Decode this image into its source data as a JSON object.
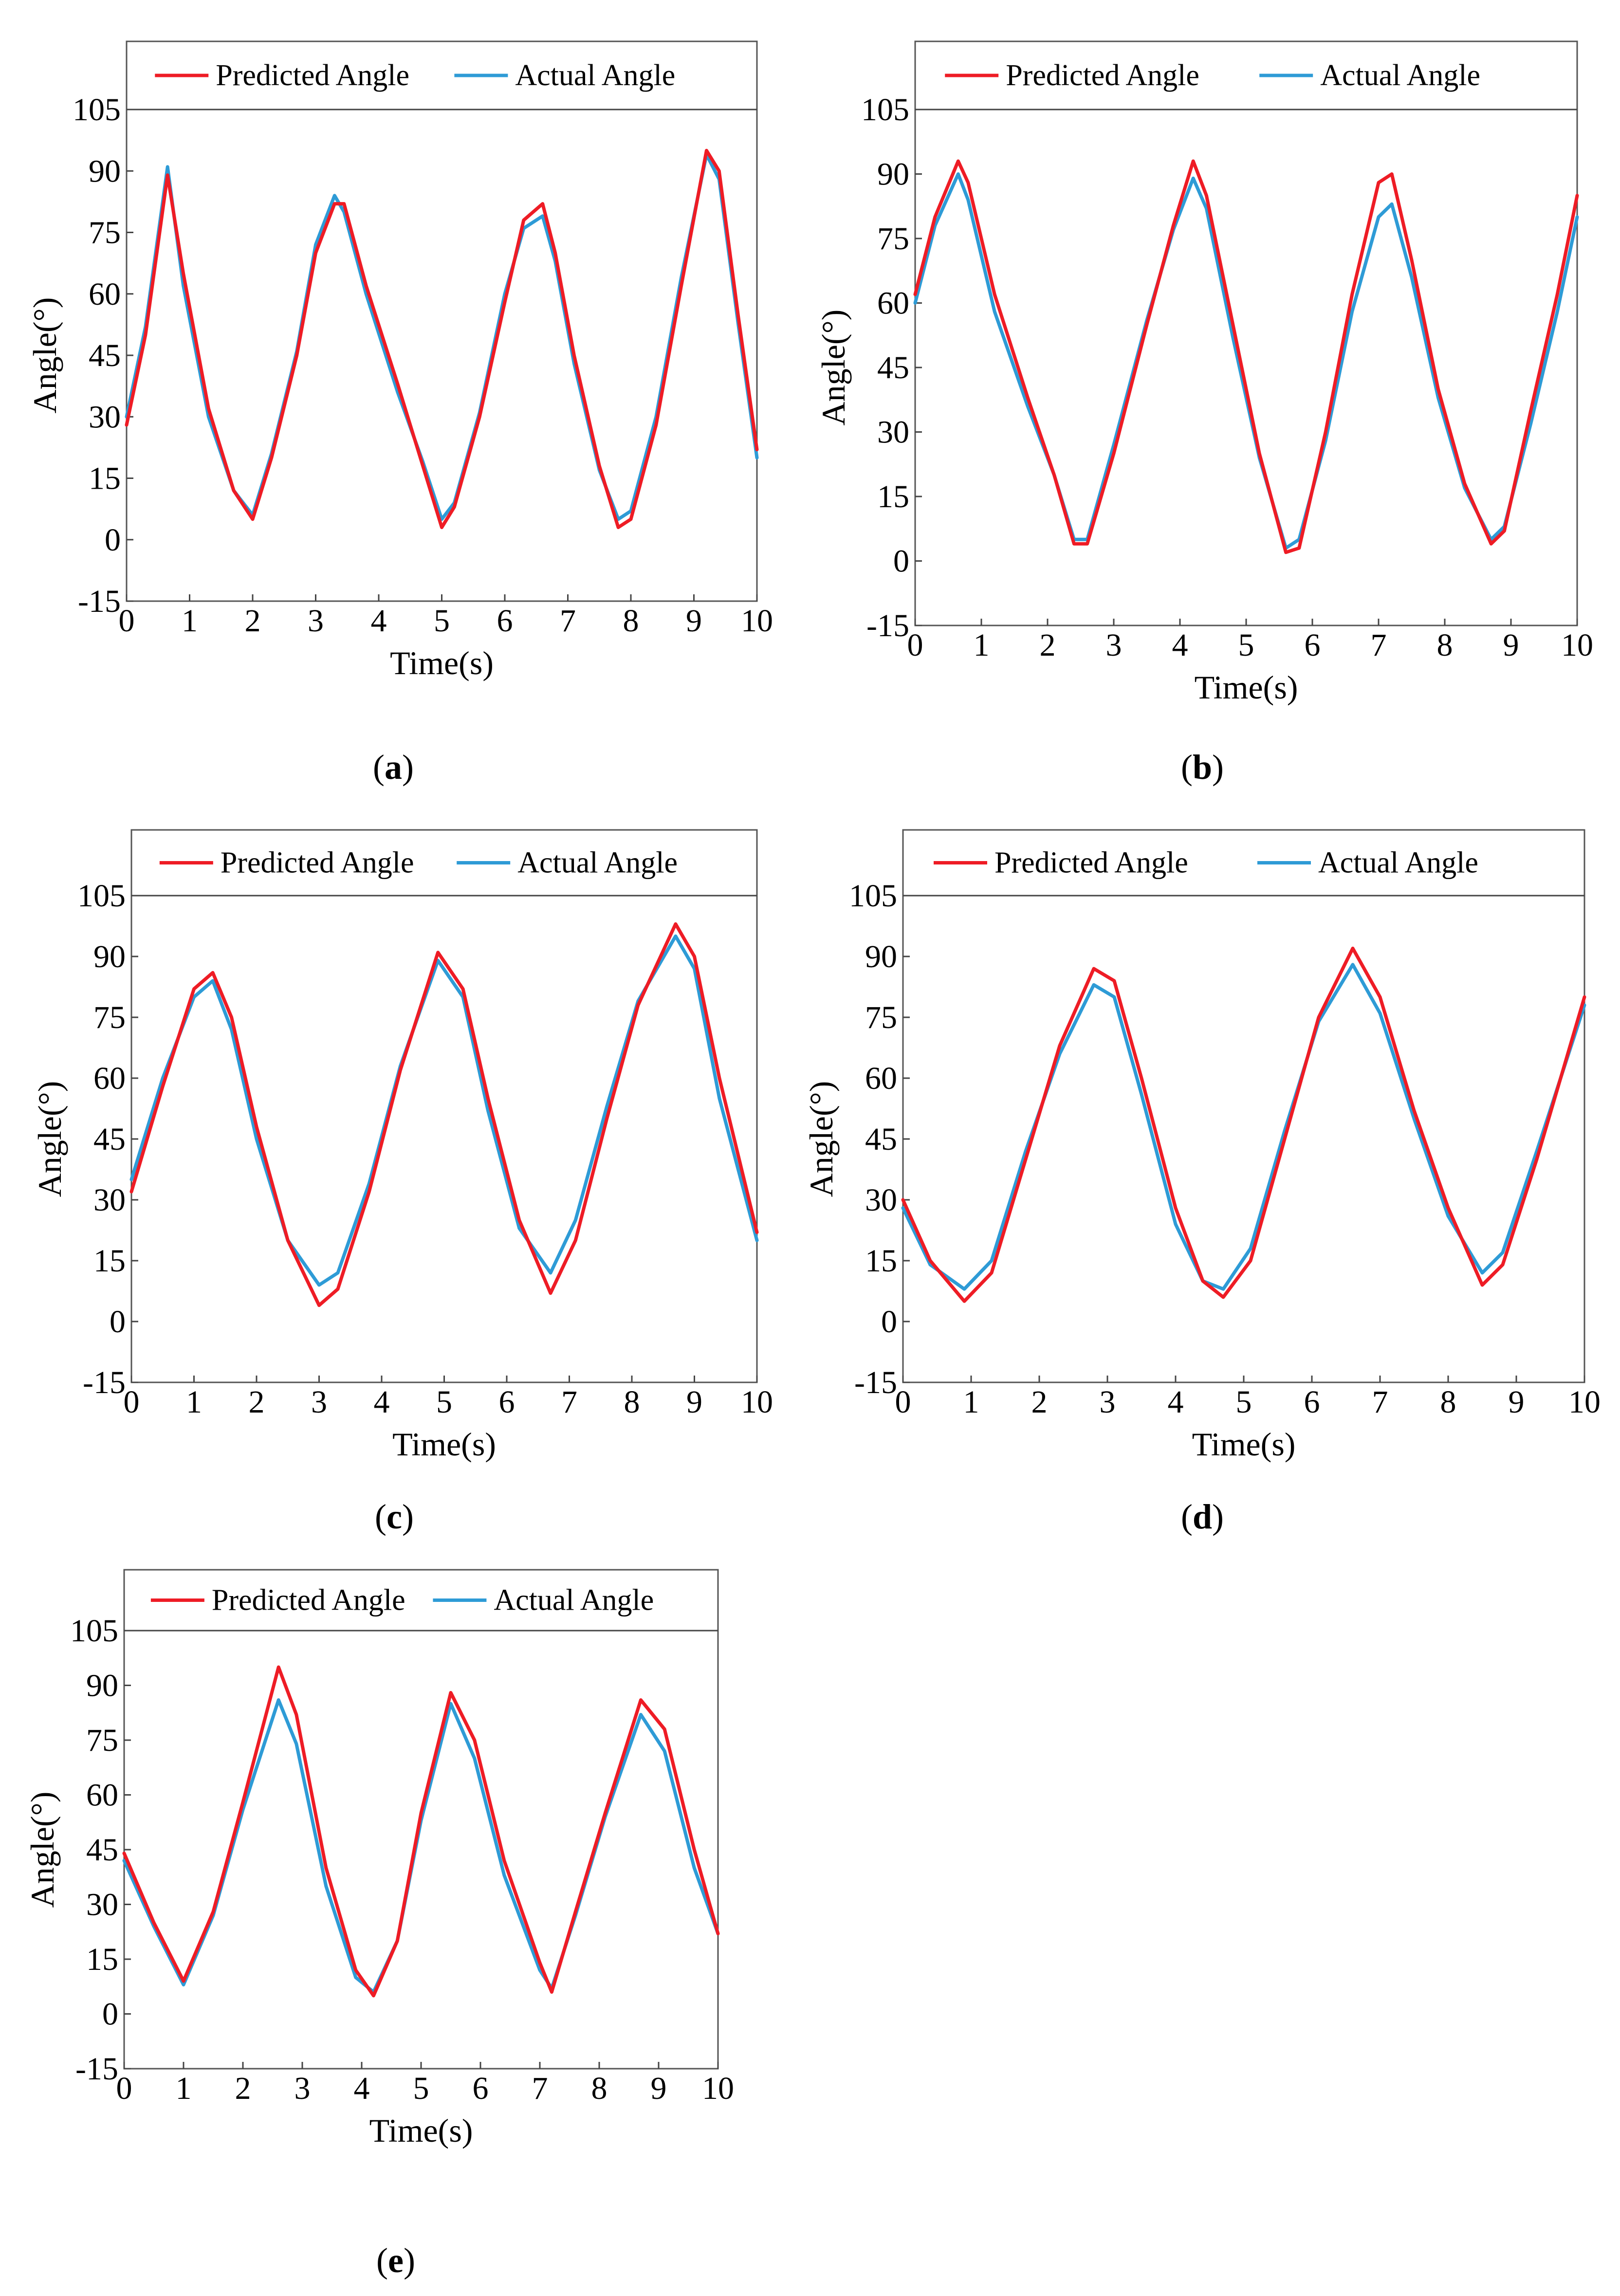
{
  "legend": {
    "predicted": "Predicted Angle",
    "actual": "Actual Angle"
  },
  "colors": {
    "predicted": "#ee1c25",
    "actual": "#2e9bd6"
  },
  "chart_data": [
    {
      "type": "line",
      "label": "(a)",
      "label_parts": [
        "(",
        "a",
        ")"
      ],
      "title": "",
      "xlabel": "Time(s)",
      "ylabel": "Angle(°)",
      "xlim": [
        0,
        10
      ],
      "ylim": [
        -15,
        105
      ],
      "x_ticks": [
        0,
        1,
        2,
        3,
        4,
        5,
        6,
        7,
        8,
        9,
        10
      ],
      "y_ticks": [
        -15,
        0,
        15,
        30,
        45,
        60,
        75,
        90,
        105
      ],
      "legend_position": "top",
      "series": [
        {
          "name": "Predicted Angle",
          "x": [
            0,
            0.3,
            0.65,
            0.9,
            1.3,
            1.7,
            2.0,
            2.3,
            2.7,
            3.0,
            3.3,
            3.45,
            3.8,
            4.3,
            4.7,
            5.0,
            5.2,
            5.6,
            6.0,
            6.3,
            6.6,
            6.8,
            7.1,
            7.5,
            7.8,
            8.0,
            8.4,
            8.8,
            9.2,
            9.4,
            9.7,
            10
          ],
          "values": [
            28,
            50,
            89,
            65,
            32,
            12,
            5,
            20,
            45,
            70,
            82,
            82,
            62,
            38,
            18,
            3,
            8,
            30,
            58,
            78,
            82,
            70,
            45,
            18,
            3,
            5,
            28,
            62,
            95,
            90,
            55,
            22
          ]
        },
        {
          "name": "Actual Angle",
          "x": [
            0,
            0.3,
            0.65,
            0.9,
            1.3,
            1.7,
            2.0,
            2.3,
            2.7,
            3.0,
            3.3,
            3.45,
            3.8,
            4.3,
            4.7,
            5.0,
            5.2,
            5.6,
            6.0,
            6.3,
            6.6,
            6.8,
            7.1,
            7.5,
            7.8,
            8.0,
            8.4,
            8.8,
            9.2,
            9.4,
            9.7,
            10
          ],
          "values": [
            30,
            52,
            91,
            62,
            30,
            12,
            6,
            21,
            46,
            72,
            84,
            80,
            60,
            36,
            19,
            5,
            9,
            31,
            60,
            76,
            79,
            68,
            43,
            17,
            5,
            7,
            30,
            64,
            94,
            88,
            53,
            20
          ]
        }
      ]
    },
    {
      "type": "line",
      "label": "(b)",
      "label_parts": [
        "(",
        "b",
        ")"
      ],
      "title": "",
      "xlabel": "Time(s)",
      "ylabel": "Angle(°)",
      "xlim": [
        0,
        10
      ],
      "ylim": [
        -15,
        105
      ],
      "x_ticks": [
        0,
        1,
        2,
        3,
        4,
        5,
        6,
        7,
        8,
        9,
        10
      ],
      "y_ticks": [
        -15,
        0,
        15,
        30,
        45,
        60,
        75,
        90,
        105
      ],
      "legend_position": "top",
      "series": [
        {
          "name": "Predicted Angle",
          "x": [
            0,
            0.3,
            0.65,
            0.8,
            1.2,
            1.7,
            2.1,
            2.4,
            2.6,
            3.0,
            3.5,
            3.9,
            4.2,
            4.4,
            4.8,
            5.2,
            5.6,
            5.8,
            6.2,
            6.6,
            7.0,
            7.2,
            7.5,
            7.9,
            8.3,
            8.7,
            8.9,
            9.3,
            9.7,
            10
          ],
          "values": [
            62,
            80,
            93,
            88,
            62,
            38,
            20,
            4,
            4,
            25,
            55,
            78,
            93,
            85,
            55,
            25,
            2,
            3,
            30,
            62,
            88,
            90,
            70,
            40,
            18,
            4,
            7,
            35,
            62,
            85
          ]
        },
        {
          "name": "Actual Angle",
          "x": [
            0,
            0.3,
            0.65,
            0.8,
            1.2,
            1.7,
            2.1,
            2.4,
            2.6,
            3.0,
            3.5,
            3.9,
            4.2,
            4.4,
            4.8,
            5.2,
            5.6,
            5.8,
            6.2,
            6.6,
            7.0,
            7.2,
            7.5,
            7.9,
            8.3,
            8.7,
            8.9,
            9.3,
            9.7,
            10
          ],
          "values": [
            60,
            78,
            90,
            84,
            58,
            36,
            20,
            5,
            5,
            27,
            56,
            77,
            89,
            82,
            52,
            24,
            3,
            5,
            28,
            58,
            80,
            83,
            66,
            38,
            17,
            5,
            8,
            32,
            58,
            80
          ]
        }
      ]
    },
    {
      "type": "line",
      "label": "(c)",
      "label_parts": [
        "(",
        "c",
        ")"
      ],
      "title": "",
      "xlabel": "Time(s)",
      "ylabel": "Angle(°)",
      "xlim": [
        0,
        10
      ],
      "ylim": [
        -15,
        105
      ],
      "x_ticks": [
        0,
        1,
        2,
        3,
        4,
        5,
        6,
        7,
        8,
        9,
        10
      ],
      "y_ticks": [
        -15,
        0,
        15,
        30,
        45,
        60,
        75,
        90,
        105
      ],
      "legend_position": "top",
      "series": [
        {
          "name": "Predicted Angle",
          "x": [
            0,
            0.5,
            1.0,
            1.3,
            1.6,
            2.0,
            2.5,
            3.0,
            3.3,
            3.8,
            4.3,
            4.9,
            5.3,
            5.7,
            6.2,
            6.7,
            7.1,
            7.6,
            8.1,
            8.7,
            9.0,
            9.4,
            10
          ],
          "values": [
            32,
            58,
            82,
            86,
            75,
            48,
            20,
            4,
            8,
            32,
            62,
            91,
            82,
            55,
            25,
            7,
            20,
            50,
            78,
            98,
            90,
            60,
            22
          ]
        },
        {
          "name": "Actual Angle",
          "x": [
            0,
            0.5,
            1.0,
            1.3,
            1.6,
            2.0,
            2.5,
            3.0,
            3.3,
            3.8,
            4.3,
            4.9,
            5.3,
            5.7,
            6.2,
            6.7,
            7.1,
            7.6,
            8.1,
            8.7,
            9.0,
            9.4,
            10
          ],
          "values": [
            35,
            60,
            80,
            84,
            72,
            45,
            20,
            9,
            12,
            34,
            63,
            89,
            80,
            52,
            23,
            12,
            25,
            53,
            79,
            95,
            87,
            55,
            20
          ]
        }
      ]
    },
    {
      "type": "line",
      "label": "(d)",
      "label_parts": [
        "(",
        "d",
        ")"
      ],
      "title": "",
      "xlabel": "Time(s)",
      "ylabel": "Angle(°)",
      "xlim": [
        0,
        10
      ],
      "ylim": [
        -15,
        105
      ],
      "x_ticks": [
        0,
        1,
        2,
        3,
        4,
        5,
        6,
        7,
        8,
        9,
        10
      ],
      "y_ticks": [
        -15,
        0,
        15,
        30,
        45,
        60,
        75,
        90,
        105
      ],
      "legend_position": "top",
      "series": [
        {
          "name": "Predicted Angle",
          "x": [
            0,
            0.4,
            0.9,
            1.3,
            1.8,
            2.3,
            2.8,
            3.1,
            3.5,
            4.0,
            4.4,
            4.7,
            5.1,
            5.6,
            6.1,
            6.6,
            7.0,
            7.5,
            8.0,
            8.5,
            8.8,
            9.3,
            10
          ],
          "values": [
            30,
            15,
            5,
            12,
            40,
            68,
            87,
            84,
            60,
            28,
            10,
            6,
            15,
            45,
            75,
            92,
            80,
            52,
            28,
            9,
            14,
            40,
            80
          ]
        },
        {
          "name": "Actual Angle",
          "x": [
            0,
            0.4,
            0.9,
            1.3,
            1.8,
            2.3,
            2.8,
            3.1,
            3.5,
            4.0,
            4.4,
            4.7,
            5.1,
            5.6,
            6.1,
            6.6,
            7.0,
            7.5,
            8.0,
            8.5,
            8.8,
            9.3,
            10
          ],
          "values": [
            28,
            14,
            8,
            15,
            42,
            66,
            83,
            80,
            56,
            24,
            10,
            8,
            18,
            47,
            74,
            88,
            76,
            50,
            26,
            12,
            17,
            42,
            78
          ]
        }
      ]
    },
    {
      "type": "line",
      "label": "(e)",
      "label_parts": [
        "(",
        "e",
        ")"
      ],
      "title": "",
      "xlabel": "Time(s)",
      "ylabel": "Angle(°)",
      "xlim": [
        0,
        10
      ],
      "ylim": [
        -15,
        105
      ],
      "x_ticks": [
        0,
        1,
        2,
        3,
        4,
        5,
        6,
        7,
        8,
        9,
        10
      ],
      "y_ticks": [
        -15,
        0,
        15,
        30,
        45,
        60,
        75,
        90,
        105
      ],
      "legend_position": "top",
      "series": [
        {
          "name": "Predicted Angle",
          "x": [
            0,
            0.5,
            1.0,
            1.5,
            2.0,
            2.6,
            2.9,
            3.4,
            3.9,
            4.2,
            4.6,
            5.0,
            5.5,
            5.9,
            6.4,
            7.0,
            7.2,
            7.6,
            8.1,
            8.7,
            9.1,
            9.6,
            10
          ],
          "values": [
            44,
            25,
            9,
            28,
            58,
            95,
            82,
            40,
            12,
            5,
            20,
            55,
            88,
            75,
            42,
            14,
            6,
            28,
            55,
            86,
            78,
            45,
            22
          ]
        },
        {
          "name": "Actual Angle",
          "x": [
            0,
            0.5,
            1.0,
            1.5,
            2.0,
            2.6,
            2.9,
            3.4,
            3.9,
            4.2,
            4.6,
            5.0,
            5.5,
            5.9,
            6.4,
            7.0,
            7.2,
            7.6,
            8.1,
            8.7,
            9.1,
            9.6,
            10
          ],
          "values": [
            42,
            24,
            8,
            27,
            56,
            86,
            74,
            35,
            10,
            6,
            20,
            53,
            85,
            70,
            38,
            12,
            7,
            27,
            54,
            82,
            72,
            40,
            22
          ]
        }
      ]
    }
  ]
}
